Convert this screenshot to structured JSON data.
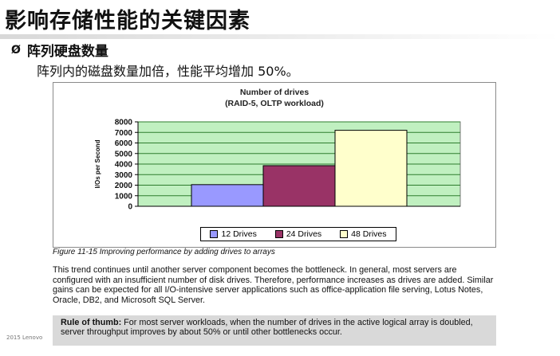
{
  "slide": {
    "title": "影响存储性能的关键因素",
    "bullet_symbol": "Ø",
    "bullet_text": "阵列硬盘数量",
    "subtext": "阵列内的磁盘数量加倍，性能平均增加 50%。",
    "footer": "2015 Lenovo"
  },
  "figure": {
    "caption": "Figure 11-15   Improving performance by adding drives to arrays",
    "paragraph": "This trend continues until another server component becomes the bottleneck. In general, most servers are configured with an insufficient number of disk drives. Therefore, performance increases as drives are added. Similar gains can be expected for all I/O-intensive server applications such as office-application file serving, Lotus Notes, Oracle, DB2, and Microsoft SQL Server.",
    "rule_label": "Rule of thumb:",
    "rule_text": " For most server workloads, when the number of drives in the active logical array is doubled, server throughput improves by about 50% or until other bottlenecks occur."
  },
  "chart_data": {
    "type": "bar",
    "title": "Number of drives",
    "subtitle": "(RAID-5, OLTP workload)",
    "ylabel": "I/Os per Second",
    "xlabel": "",
    "ylim": [
      0,
      8000
    ],
    "yticks": [
      0,
      1000,
      2000,
      3000,
      4000,
      5000,
      6000,
      7000,
      8000
    ],
    "grid": true,
    "legend_position": "bottom",
    "series": [
      {
        "name": "12 Drives",
        "value": 2050,
        "color": "#9999ff"
      },
      {
        "name": "24 Drives",
        "value": 3850,
        "color": "#993366"
      },
      {
        "name": "48 Drives",
        "value": 7200,
        "color": "#ffffcc"
      }
    ],
    "plot_background": "#c0f0c0",
    "grid_color": "#2e7d2e"
  }
}
